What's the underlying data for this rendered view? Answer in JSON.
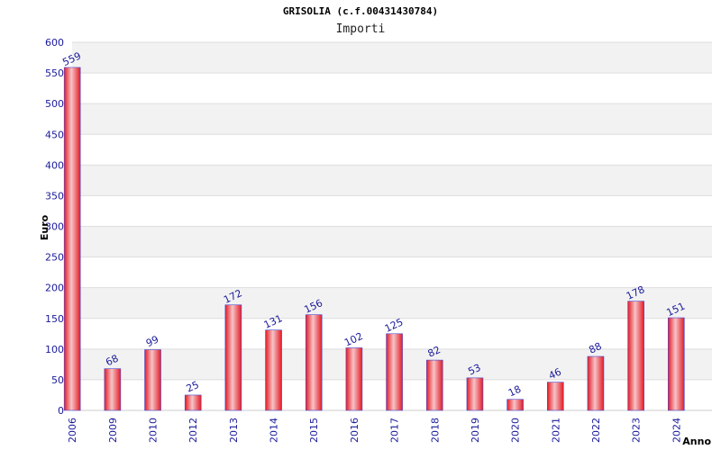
{
  "chart_data": {
    "type": "bar",
    "title": "GRISOLIA (c.f.00431430784)",
    "subtitle": "Importi",
    "ylabel": "Euro",
    "xlabel": "Anno",
    "ylim": [
      0,
      600
    ],
    "yticks": [
      0,
      50,
      100,
      150,
      200,
      250,
      300,
      350,
      400,
      450,
      500,
      550,
      600
    ],
    "grid": true,
    "categories": [
      "2006",
      "2009",
      "2010",
      "2012",
      "2013",
      "2014",
      "2015",
      "2016",
      "2017",
      "2018",
      "2019",
      "2020",
      "2021",
      "2022",
      "2023",
      "2024"
    ],
    "values": [
      559,
      68,
      99,
      25,
      172,
      131,
      156,
      102,
      125,
      82,
      53,
      18,
      46,
      88,
      178,
      151
    ],
    "colors": {
      "bar": "#e8202a",
      "bar_highlight": "#f5c0c4",
      "bar_edge": "#4a4ad0",
      "band": "#f2f2f2",
      "grid": "#dddddd",
      "tick_text": "#1a1a9a"
    }
  }
}
